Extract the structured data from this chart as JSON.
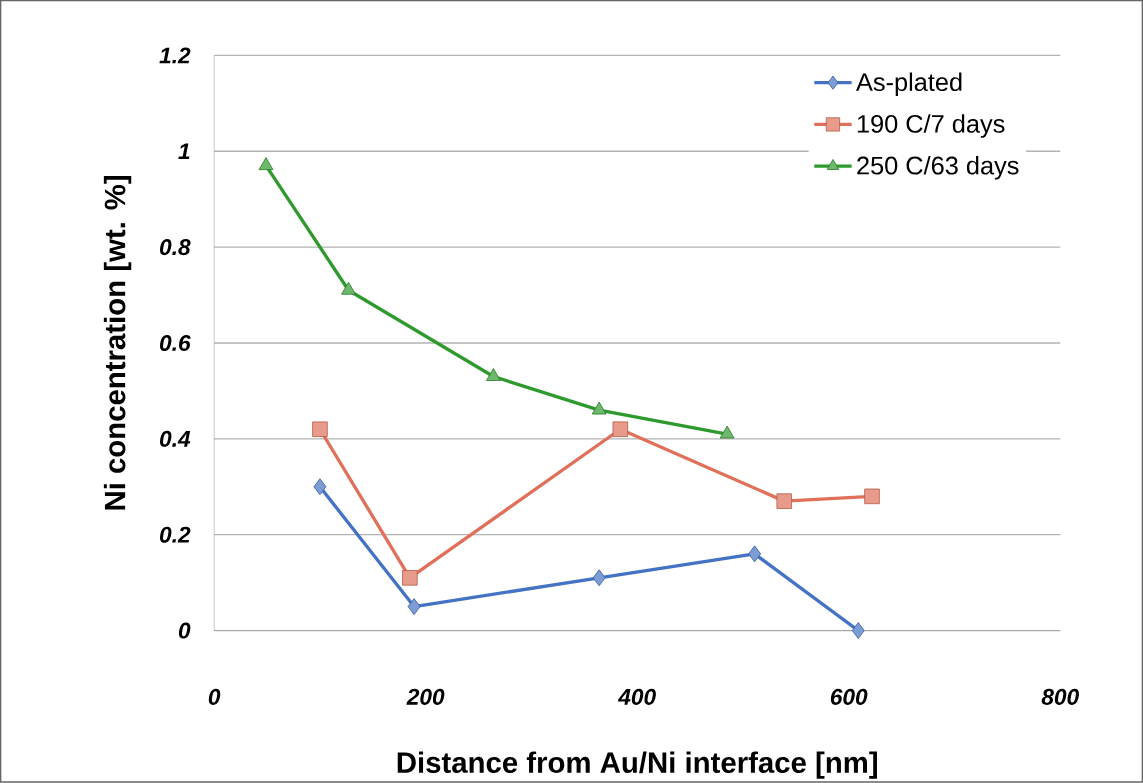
{
  "chart_data": {
    "type": "line",
    "xlabel": "Distance from Au/Ni interface [nm]",
    "ylabel": "Ni concentration [wt. %]",
    "xlim": [
      0,
      800
    ],
    "xticks": [
      0,
      200,
      400,
      600,
      800
    ],
    "ylim": [
      0,
      1.2
    ],
    "yticks": [
      0,
      0.2,
      0.4,
      0.6,
      0.8,
      1,
      1.2
    ],
    "grid": "y",
    "legend": "top right",
    "line_style": "solid",
    "series": [
      {
        "name": "As-plated",
        "color": "#4472c4",
        "marker": "diamond",
        "x": [
          100,
          189,
          364,
          511,
          609
        ],
        "values": [
          0.3,
          0.05,
          0.11,
          0.16,
          0
        ]
      },
      {
        "name": "190 C/7 days",
        "color": "#e0705a",
        "marker": "square",
        "x": [
          100,
          185,
          384,
          539,
          622
        ],
        "values": [
          0.42,
          0.11,
          0.42,
          0.27,
          0.28
        ]
      },
      {
        "name": "250 C/63 days",
        "color": "#2e9a2e",
        "marker": "triangle",
        "x": [
          49,
          127,
          264,
          364,
          485
        ],
        "values": [
          0.97,
          0.71,
          0.53,
          0.46,
          0.41
        ]
      }
    ]
  }
}
